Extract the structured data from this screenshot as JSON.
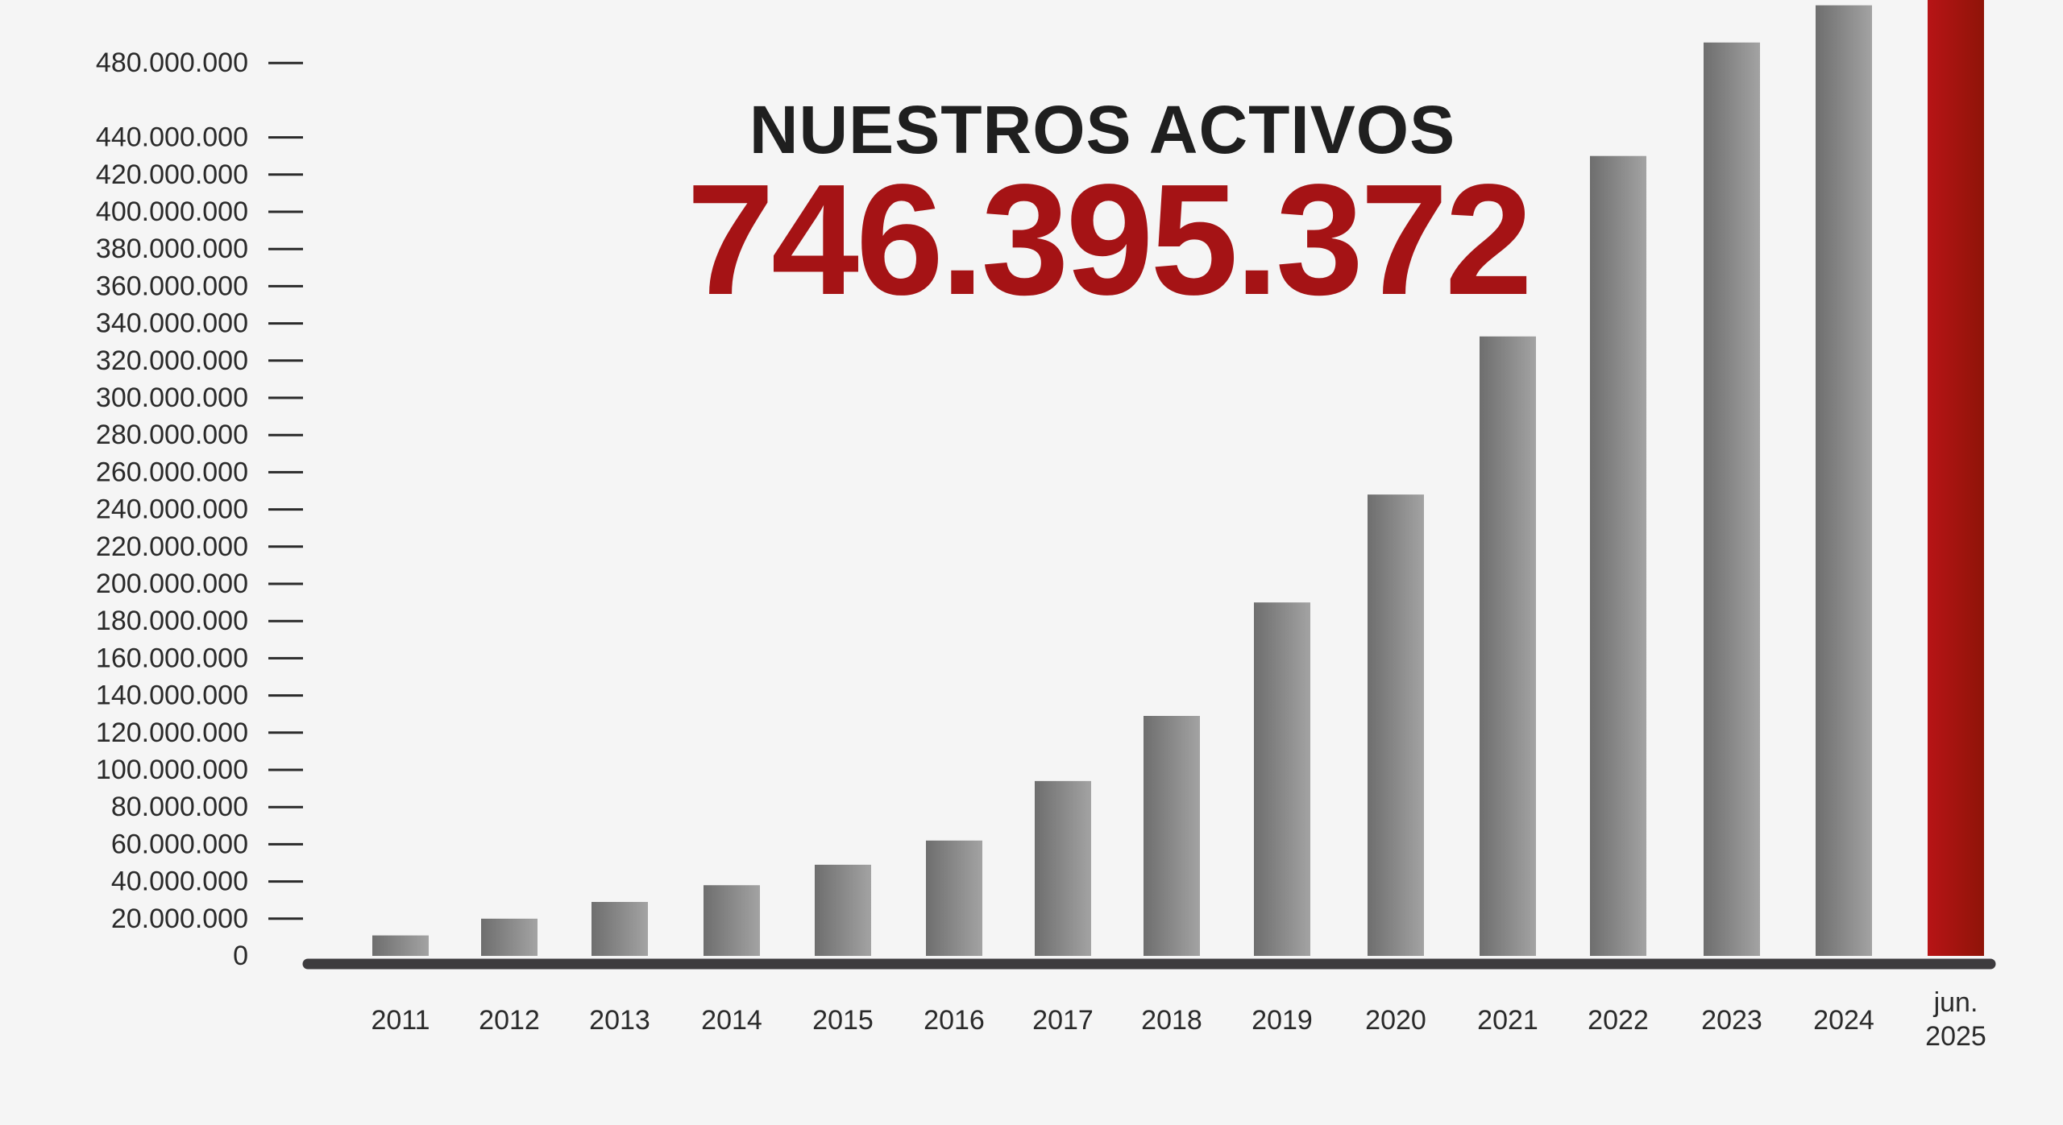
{
  "chart_data": {
    "type": "bar",
    "title": "NUESTROS ACTIVOS",
    "highlight_value_label": "746.395.372",
    "categories": [
      "2011",
      "2012",
      "2013",
      "2014",
      "2015",
      "2016",
      "2017",
      "2018",
      "2019",
      "2020",
      "2021",
      "2022",
      "2023",
      "2024",
      "jun.\n2025"
    ],
    "values": [
      11000000,
      20000000,
      29000000,
      38000000,
      49000000,
      62000000,
      94000000,
      129000000,
      190000000,
      248000000,
      333000000,
      430000000,
      491000000,
      511000000,
      746395372
    ],
    "y_tick_labels": [
      "0",
      "20.000.000",
      "40.000.000",
      "60.000.000",
      "80.000.000",
      "100.000.000",
      "120.000.000",
      "140.000.000",
      "160.000.000",
      "180.000.000",
      "200.000.000",
      "220.000.000",
      "240.000.000",
      "260.000.000",
      "280.000.000",
      "300.000.000",
      "320.000.000",
      "340.000.000",
      "360.000.000",
      "380.000.000",
      "400.000.000",
      "420.000.000",
      "440.000.000",
      "480.000.000"
    ],
    "y_tick_values": [
      0,
      20000000,
      40000000,
      60000000,
      80000000,
      100000000,
      120000000,
      140000000,
      160000000,
      180000000,
      200000000,
      220000000,
      240000000,
      260000000,
      280000000,
      300000000,
      320000000,
      340000000,
      360000000,
      380000000,
      400000000,
      420000000,
      440000000,
      480000000
    ],
    "xlabel": "",
    "ylabel": "",
    "legend": "none",
    "grid": false,
    "colors": {
      "bar_light": "#a3a3a3",
      "bar_dark": "#6e6e6e",
      "highlight_light": "#b71416",
      "highlight_dark": "#8f1408",
      "baseline": "#3d3b3e",
      "title": "#1f1f1f",
      "total": "#a51315"
    }
  }
}
